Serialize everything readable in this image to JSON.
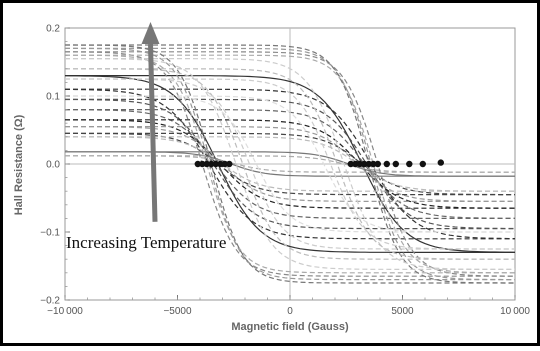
{
  "chart_data": {
    "type": "line",
    "title": "",
    "xlabel": "Magnetic field (Gauss)",
    "ylabel": "Hall Resistance (Ω)",
    "xlim": [
      -10000,
      10000
    ],
    "ylim": [
      -0.2,
      0.2
    ],
    "xticks": [
      -10000,
      -5000,
      0,
      5000,
      10000
    ],
    "xtick_labels": [
      "−10 000",
      "−5000",
      "0",
      "5000",
      "10 000"
    ],
    "yticks": [
      -0.2,
      -0.1,
      0.0,
      0.1,
      0.2
    ],
    "ytick_labels": [
      "−0.2",
      "−0.1",
      "0.0",
      "0.1",
      "0.2"
    ],
    "grid": false,
    "annotation": {
      "text": "Increasing Temperature",
      "arrow_from": [
        -6000,
        -0.085
      ],
      "arrow_to": [
        -6200,
        0.2
      ]
    },
    "series": [
      {
        "shade": "#333333",
        "dash": "solid",
        "ms": 0.13,
        "hc": 3200,
        "w": 1900
      },
      {
        "shade": "#333333",
        "dash": "dash",
        "ms": 0.11,
        "hc": 3600,
        "w": 1900
      },
      {
        "shade": "#555555",
        "dash": "dash",
        "ms": 0.095,
        "hc": 3400,
        "w": 1800
      },
      {
        "shade": "#666666",
        "dash": "dash",
        "ms": 0.08,
        "hc": 3300,
        "w": 1800
      },
      {
        "shade": "#222222",
        "dash": "dash",
        "ms": 0.065,
        "hc": 3100,
        "w": 1800
      },
      {
        "shade": "#999999",
        "dash": "dash",
        "ms": 0.055,
        "hc": 3000,
        "w": 1700
      },
      {
        "shade": "#444444",
        "dash": "dash",
        "ms": 0.045,
        "hc": 3200,
        "w": 1700
      },
      {
        "shade": "#bbbbbb",
        "dash": "dash",
        "ms": 0.04,
        "hc": 3000,
        "w": 1700
      },
      {
        "shade": "#777777",
        "dash": "solid",
        "ms": 0.018,
        "hc": 2600,
        "w": 1500
      },
      {
        "shade": "#aaaaaa",
        "dash": "dash",
        "ms": 0.012,
        "hc": 2400,
        "w": 1500
      },
      {
        "shade": "#888888",
        "dash": "dash",
        "ms": 0.165,
        "hc": 3900,
        "w": 1500
      },
      {
        "shade": "#aaaaaa",
        "dash": "dash",
        "ms": 0.16,
        "hc": 3700,
        "w": 1400
      },
      {
        "shade": "#999999",
        "dash": "dash",
        "ms": 0.17,
        "hc": 3600,
        "w": 1400
      },
      {
        "shade": "#777777",
        "dash": "dash",
        "ms": 0.175,
        "hc": 3500,
        "w": 1400
      },
      {
        "shade": "#cccccc",
        "dash": "dash",
        "ms": 0.155,
        "hc": 2400,
        "w": 1600
      },
      {
        "shade": "#bbbbbb",
        "dash": "dash",
        "ms": 0.14,
        "hc": 2100,
        "w": 1500
      },
      {
        "shade": "#cccccc",
        "dash": "dash",
        "ms": 0.125,
        "hc": 1800,
        "w": 1500
      },
      {
        "shade": "#dddddd",
        "dash": "dash",
        "ms": 0.1,
        "hc": 1500,
        "w": 1500
      }
    ],
    "markers_left": {
      "x": [
        -4100,
        -3900,
        -3700,
        -3500,
        -3300,
        -3100,
        -2900,
        -2700
      ],
      "y": [
        0,
        0,
        0,
        0,
        0,
        0,
        0,
        0
      ]
    },
    "markers_right": {
      "x": [
        2700,
        2900,
        3100,
        3300,
        3500,
        3700,
        3900,
        4300,
        4700,
        5300,
        5900,
        6700
      ],
      "y": [
        0,
        0,
        0,
        0,
        0,
        0,
        0,
        0,
        0,
        0,
        0,
        0.002
      ]
    }
  }
}
